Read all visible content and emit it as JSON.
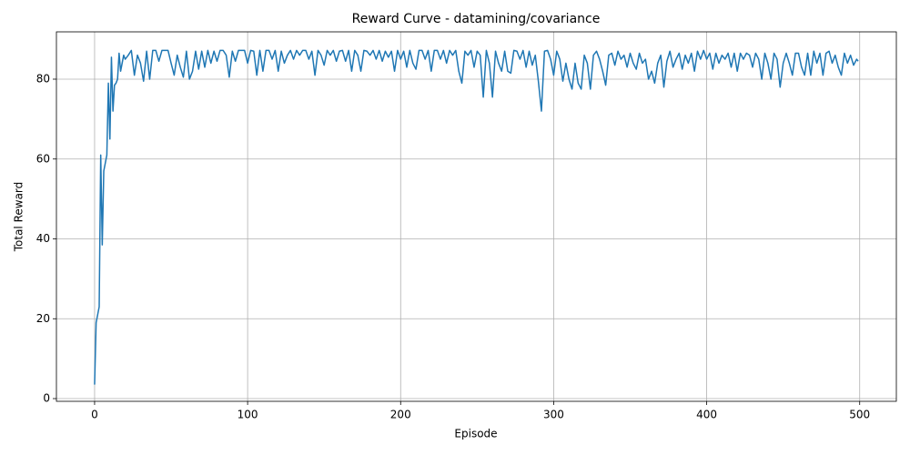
{
  "chart_data": {
    "type": "line",
    "title": "Reward Curve - datamining/covariance",
    "x_label": "Episode",
    "y_label": "Total Reward",
    "x": [
      0,
      1,
      2,
      3,
      4,
      5,
      6,
      7,
      8,
      9,
      10,
      11,
      12,
      13,
      14,
      15,
      16,
      17,
      18,
      19,
      20,
      22,
      24,
      26,
      28,
      30,
      32,
      34,
      36,
      38,
      40,
      42,
      44,
      46,
      48,
      50,
      52,
      54,
      56,
      58,
      60,
      62,
      64,
      66,
      68,
      70,
      72,
      74,
      76,
      78,
      80,
      82,
      84,
      86,
      88,
      90,
      92,
      94,
      96,
      98,
      100,
      102,
      104,
      106,
      108,
      110,
      112,
      114,
      116,
      118,
      120,
      122,
      124,
      126,
      128,
      130,
      132,
      134,
      136,
      138,
      140,
      142,
      144,
      146,
      148,
      150,
      152,
      154,
      156,
      158,
      160,
      162,
      164,
      166,
      168,
      170,
      172,
      174,
      176,
      178,
      180,
      182,
      184,
      186,
      188,
      190,
      192,
      194,
      196,
      198,
      200,
      202,
      204,
      206,
      208,
      210,
      212,
      214,
      216,
      218,
      220,
      222,
      224,
      226,
      228,
      230,
      232,
      234,
      236,
      238,
      240,
      242,
      244,
      246,
      248,
      250,
      252,
      254,
      256,
      258,
      260,
      262,
      264,
      266,
      268,
      270,
      272,
      274,
      276,
      278,
      280,
      282,
      284,
      286,
      288,
      290,
      292,
      294,
      296,
      298,
      300,
      302,
      304,
      306,
      308,
      310,
      312,
      314,
      316,
      318,
      320,
      322,
      324,
      326,
      328,
      330,
      332,
      334,
      336,
      338,
      340,
      342,
      344,
      346,
      348,
      350,
      352,
      354,
      356,
      358,
      360,
      362,
      364,
      366,
      368,
      370,
      372,
      374,
      376,
      378,
      380,
      382,
      384,
      386,
      388,
      390,
      392,
      394,
      396,
      398,
      400,
      402,
      404,
      406,
      408,
      410,
      412,
      414,
      416,
      418,
      420,
      422,
      424,
      426,
      428,
      430,
      432,
      434,
      436,
      438,
      440,
      442,
      444,
      446,
      448,
      450,
      452,
      454,
      456,
      458,
      460,
      462,
      464,
      466,
      468,
      470,
      472,
      474,
      476,
      478,
      480,
      482,
      484,
      486,
      488,
      490,
      492,
      494,
      496,
      498,
      499
    ],
    "series": [
      {
        "name": "Total Reward",
        "color": "#1f77b4",
        "values": [
          3.5,
          19,
          21,
          23,
          61,
          38.5,
          57,
          59,
          61,
          79,
          65,
          85.5,
          72,
          78.5,
          79,
          80,
          86.5,
          82,
          84,
          86,
          85,
          86,
          87.2,
          81,
          86,
          84,
          79.5,
          87,
          80,
          87.2,
          87.2,
          84.5,
          87.2,
          87.2,
          87.2,
          84,
          81,
          86,
          83,
          80.5,
          87,
          80,
          82,
          87,
          82.5,
          87,
          83,
          87.2,
          84,
          87,
          84.5,
          87.2,
          87.2,
          86,
          80.5,
          87,
          84.5,
          87.2,
          87.2,
          87.2,
          84,
          87.2,
          87,
          81,
          87.2,
          82,
          87.2,
          87.2,
          85,
          87.2,
          82,
          87,
          84,
          86,
          87.2,
          85,
          87.2,
          86,
          87.2,
          87.2,
          85,
          87,
          81,
          87.2,
          86,
          83.5,
          87.2,
          86,
          87.2,
          84.5,
          87,
          87.2,
          84.5,
          87.2,
          82,
          87.2,
          86,
          82,
          87.2,
          87,
          86,
          87.2,
          85,
          87.2,
          84.5,
          87,
          85.5,
          87,
          82,
          87.2,
          85,
          87,
          83,
          87.2,
          84,
          82.5,
          87.2,
          87.2,
          85,
          87.2,
          82,
          87.2,
          87.2,
          85,
          87.2,
          84,
          87.2,
          86,
          87.2,
          82,
          79,
          87,
          86,
          87.2,
          83,
          87,
          86,
          75.5,
          87.2,
          84,
          75.5,
          87,
          84,
          82,
          87,
          82,
          81.5,
          87.2,
          87,
          85,
          87.2,
          83,
          87,
          83.5,
          86,
          79.5,
          72,
          87,
          87.2,
          85,
          81,
          87,
          85,
          79.5,
          84,
          80,
          77.5,
          84,
          79,
          77.5,
          86,
          84,
          77.5,
          86,
          87,
          85,
          82,
          78.5,
          86,
          86.5,
          83.5,
          87,
          85,
          86,
          83,
          86.5,
          84,
          82.5,
          86.5,
          84,
          85,
          80,
          82,
          79,
          84,
          86,
          78,
          84.5,
          87,
          83,
          85,
          86.5,
          82.5,
          86,
          84,
          86.5,
          82,
          87,
          85,
          87.2,
          85,
          86.5,
          82.5,
          86.5,
          84,
          86,
          85,
          86.5,
          83,
          86.5,
          82,
          86.5,
          85,
          86.5,
          86,
          83,
          86.5,
          85,
          80,
          86.5,
          84,
          80,
          86.5,
          85,
          78,
          84,
          86.5,
          84,
          81,
          86.5,
          86.5,
          83,
          81,
          86.5,
          81,
          87,
          84,
          86.5,
          81,
          86.5,
          87,
          84,
          86,
          83,
          81,
          86.5,
          84,
          86,
          83.5,
          85,
          84.5
        ]
      }
    ],
    "xlim": [
      -24.95,
      523.95
    ],
    "xticks": [
      0,
      100,
      200,
      300,
      400,
      500
    ],
    "ylim": [
      -0.68,
      91.85
    ],
    "yticks": [
      0,
      20,
      40,
      60,
      80
    ],
    "grid": true
  }
}
